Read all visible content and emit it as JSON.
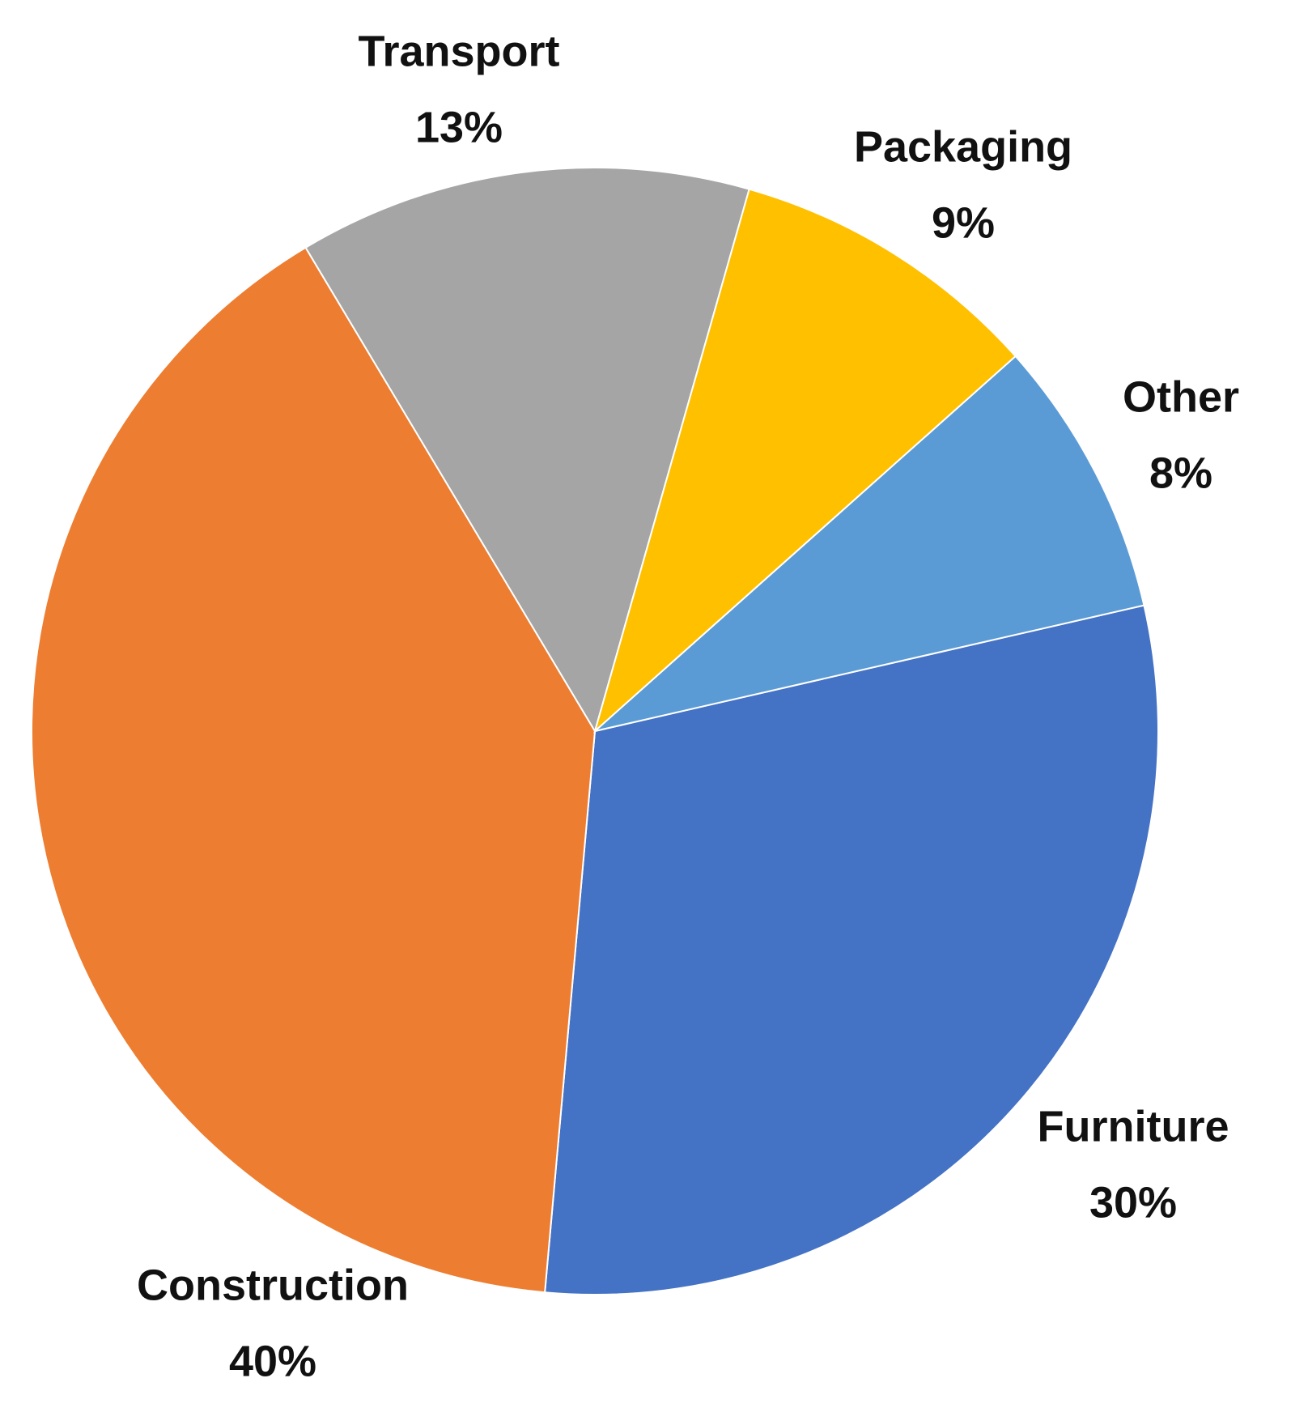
{
  "chart_data": {
    "type": "pie",
    "categories": [
      "Furniture",
      "Construction",
      "Transport",
      "Packaging",
      "Other"
    ],
    "values": [
      30,
      40,
      13,
      9,
      8
    ],
    "value_labels": [
      "30%",
      "40%",
      "13%",
      "9%",
      "8%"
    ],
    "colors": [
      "#4472c4",
      "#ed7d31",
      "#a5a5a5",
      "#ffc000",
      "#5b9bd5"
    ]
  }
}
